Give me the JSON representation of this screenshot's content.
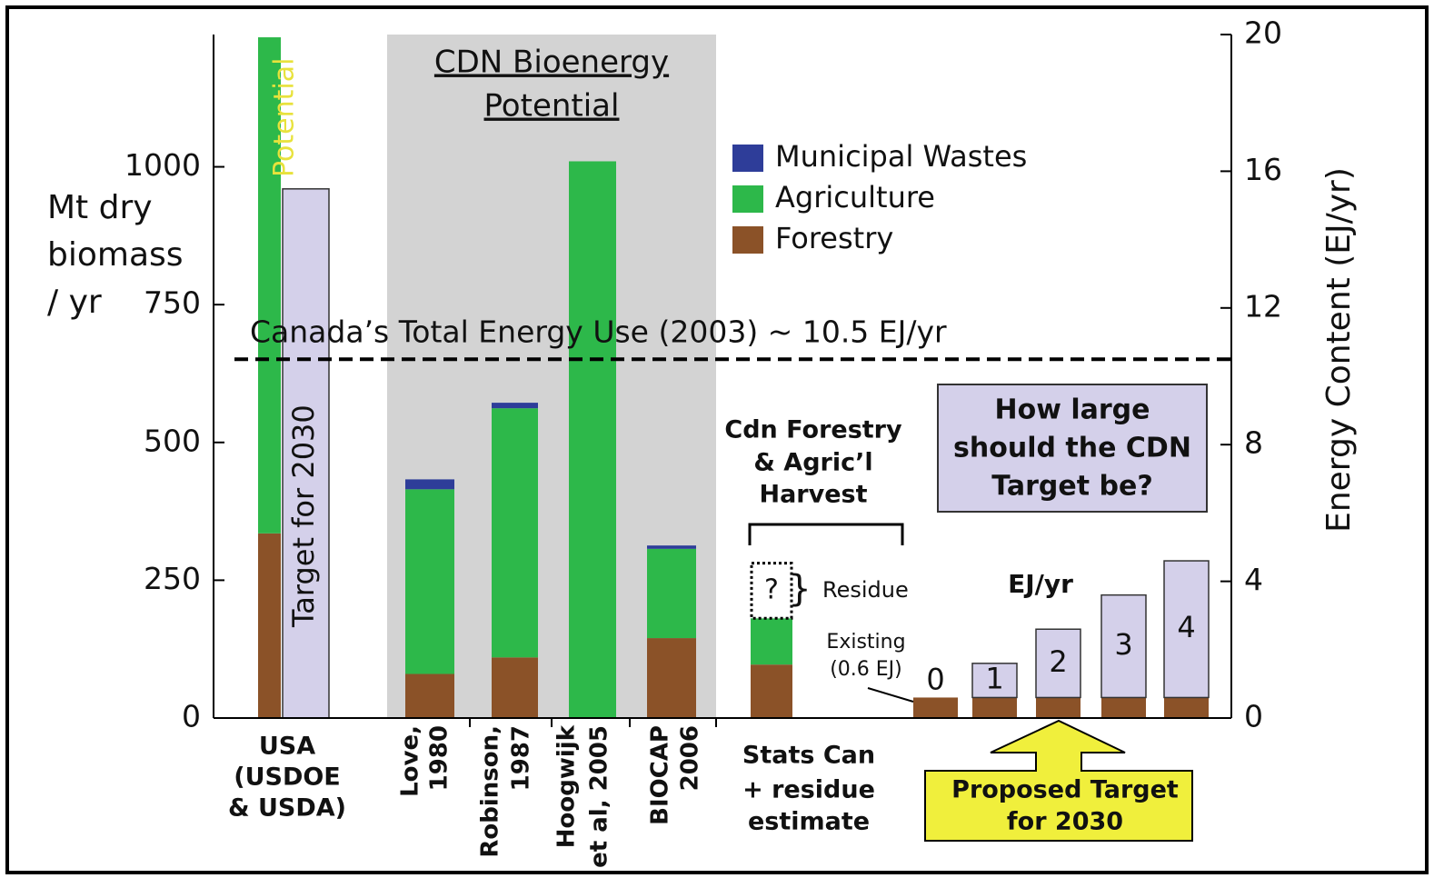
{
  "chart_data": {
    "type": "bar",
    "stacked": true,
    "ylabel": [
      "Mt dry",
      "biomass",
      "/ yr"
    ],
    "y2label": "Energy Content (EJ/yr)",
    "ylim": [
      0,
      1240
    ],
    "yticks": [
      0,
      250,
      500,
      750,
      1000
    ],
    "y2lim": [
      0,
      20
    ],
    "y2ticks": [
      0,
      4,
      8,
      12,
      16,
      20
    ],
    "categories": [
      [
        "USA",
        "(USDOE",
        "& USDA)"
      ],
      [
        "Love,",
        "1980"
      ],
      [
        "Robinson,",
        "1987"
      ],
      [
        "Hoogwijk",
        "et al, 2005"
      ],
      [
        "BIOCAP",
        "2006"
      ],
      [
        "Stats Can",
        "+ residue",
        "estimate"
      ]
    ],
    "series": [
      {
        "name": "Forestry",
        "color": "#8b5228",
        "values": [
          335,
          80,
          110,
          null,
          145,
          97
        ]
      },
      {
        "name": "Agriculture",
        "color": "#2db84a",
        "values": [
          900,
          335,
          452,
          1010,
          162,
          84
        ]
      },
      {
        "name": "Municipal Wastes",
        "color": "#2e3d99",
        "values": [
          null,
          18,
          10,
          null,
          6,
          null
        ]
      }
    ],
    "potential_label": "Potential",
    "target": {
      "label": "Target for 2030",
      "value": 960,
      "color": "#d4d0ea"
    },
    "shaded_label": [
      "CDN Bioenergy",
      "Potential"
    ],
    "reference_line": {
      "axis": "y2",
      "value": 10.5,
      "label": "Canada’s Total Energy Use (2003) ~ 10.5 EJ/yr"
    },
    "harvest_label": [
      "Cdn Forestry",
      "& Agric’l",
      "Harvest"
    ],
    "residue": {
      "label": "?",
      "value": 100,
      "note": "Residue"
    },
    "proposed": {
      "axis": "y2",
      "unit_label": "EJ/yr",
      "existing_label": [
        "Existing",
        "(0.6 EJ)"
      ],
      "existing": [
        0.6,
        0.6,
        0.6,
        0.6,
        0.6
      ],
      "values": [
        0,
        1,
        2,
        3,
        4
      ],
      "question": [
        "How large",
        "should the CDN",
        "Target be?"
      ],
      "callout": [
        "Proposed Target",
        "for 2030"
      ]
    }
  }
}
